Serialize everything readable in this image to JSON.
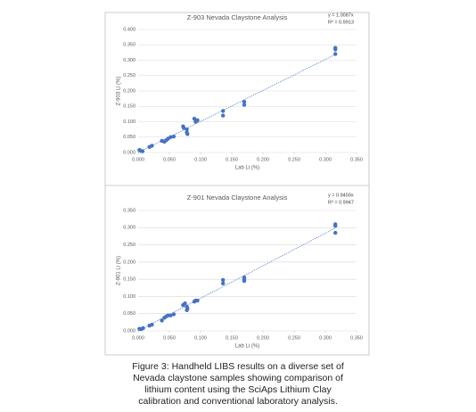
{
  "chart_data": [
    {
      "type": "scatter",
      "title": "Z-903 Nevada Claystone Analysis",
      "x_label": "Lab Li (%)",
      "y_label": "Z-903 Li (%)",
      "color": "#4472c4",
      "grid": true,
      "trendline": {
        "slope": 1.0087,
        "label": "y = 1.0087x"
      },
      "r_squared_label": "R² = 0.9913",
      "x": [
        0.002,
        0.005,
        0.007,
        0.018,
        0.022,
        0.038,
        0.042,
        0.045,
        0.048,
        0.052,
        0.057,
        0.072,
        0.073,
        0.078,
        0.078,
        0.079,
        0.09,
        0.092,
        0.095,
        0.136,
        0.136,
        0.17,
        0.17,
        0.316,
        0.316,
        0.316
      ],
      "values": [
        0.008,
        0.005,
        0.004,
        0.018,
        0.022,
        0.038,
        0.035,
        0.04,
        0.045,
        0.05,
        0.052,
        0.085,
        0.08,
        0.075,
        0.065,
        0.06,
        0.11,
        0.1,
        0.105,
        0.135,
        0.12,
        0.165,
        0.155,
        0.34,
        0.335,
        0.32
      ],
      "xlim": [
        0,
        0.35
      ],
      "xticks": [
        {
          "value": 0,
          "label": "0.000"
        },
        {
          "value": 0.05,
          "label": "0.050"
        },
        {
          "value": 0.1,
          "label": "0.100"
        },
        {
          "value": 0.15,
          "label": "0.150"
        },
        {
          "value": 0.2,
          "label": "0.200"
        },
        {
          "value": 0.25,
          "label": "0.250"
        },
        {
          "value": 0.3,
          "label": "0.300"
        },
        {
          "value": 0.35,
          "label": "0.350"
        }
      ],
      "ylim": [
        0,
        0.4
      ],
      "yticks": [
        {
          "value": 0,
          "label": "0.000"
        },
        {
          "value": 0.05,
          "label": "0.050"
        },
        {
          "value": 0.1,
          "label": "0.100"
        },
        {
          "value": 0.15,
          "label": "0.150"
        },
        {
          "value": 0.2,
          "label": "0.200"
        },
        {
          "value": 0.25,
          "label": "0.250"
        },
        {
          "value": 0.3,
          "label": "0.300"
        },
        {
          "value": 0.35,
          "label": "0.350"
        },
        {
          "value": 0.4,
          "label": "0.400"
        }
      ]
    },
    {
      "type": "scatter",
      "title": "Z-901 Nevada Claystone Analysis",
      "x_label": "Lab Li (%)",
      "y_label": "Z-901 Li (%)",
      "color": "#4472c4",
      "grid": true,
      "trendline": {
        "slope": 0.9459,
        "label": "y = 0.9459x"
      },
      "r_squared_label": "R² = 0.9947",
      "x": [
        0.002,
        0.005,
        0.008,
        0.018,
        0.022,
        0.038,
        0.042,
        0.045,
        0.048,
        0.052,
        0.057,
        0.072,
        0.075,
        0.078,
        0.078,
        0.079,
        0.09,
        0.092,
        0.095,
        0.136,
        0.136,
        0.17,
        0.17,
        0.17,
        0.316,
        0.316,
        0.316
      ],
      "values": [
        0.006,
        0.005,
        0.008,
        0.015,
        0.018,
        0.03,
        0.038,
        0.042,
        0.045,
        0.045,
        0.048,
        0.075,
        0.08,
        0.07,
        0.06,
        0.065,
        0.085,
        0.088,
        0.088,
        0.148,
        0.138,
        0.155,
        0.15,
        0.145,
        0.31,
        0.305,
        0.285
      ],
      "xlim": [
        0,
        0.35
      ],
      "xticks": [
        {
          "value": 0,
          "label": "0.000"
        },
        {
          "value": 0.05,
          "label": "0.050"
        },
        {
          "value": 0.1,
          "label": "0.100"
        },
        {
          "value": 0.15,
          "label": "0.150"
        },
        {
          "value": 0.2,
          "label": "0.200"
        },
        {
          "value": 0.25,
          "label": "0.250"
        },
        {
          "value": 0.3,
          "label": "0.300"
        },
        {
          "value": 0.35,
          "label": "0.350"
        }
      ],
      "ylim": [
        0,
        0.35
      ],
      "yticks": [
        {
          "value": 0,
          "label": "0.000"
        },
        {
          "value": 0.05,
          "label": "0.050"
        },
        {
          "value": 0.1,
          "label": "0.100"
        },
        {
          "value": 0.15,
          "label": "0.150"
        },
        {
          "value": 0.2,
          "label": "0.200"
        },
        {
          "value": 0.25,
          "label": "0.250"
        },
        {
          "value": 0.3,
          "label": "0.300"
        },
        {
          "value": 0.35,
          "label": "0.350"
        }
      ]
    }
  ],
  "caption": [
    "Figure 3: Handheld LIBS results on a diverse set of",
    "Nevada claystone samples showing comparison of",
    "lithium content using the SciAps Lithium Clay",
    "calibration and conventional laboratory analysis."
  ]
}
